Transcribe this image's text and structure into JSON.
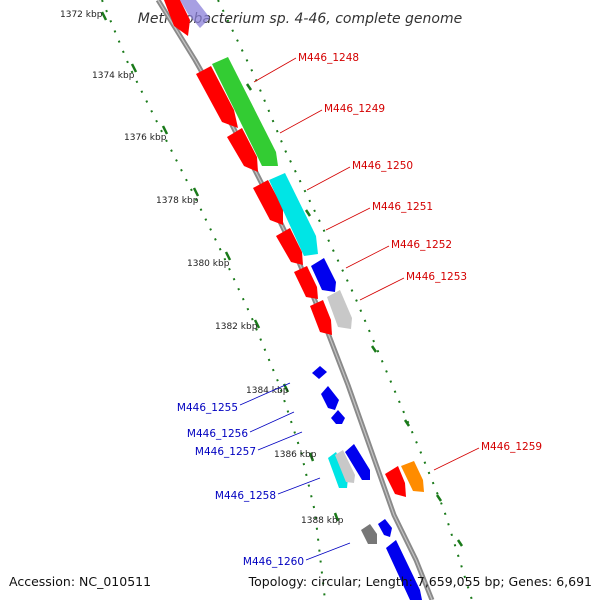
{
  "title": "Methylobacterium sp. 4-46, complete genome",
  "footer": {
    "accession": "Accession: NC_010511",
    "summary": "Topology: circular; Length: 7,659,055 bp; Genes: 6,691"
  },
  "colors": {
    "backbone": "#8a8a8a",
    "ticks": "#1a7a1a",
    "red": "#ff0000",
    "green": "#33cc33",
    "cyan": "#00e5e5",
    "blue": "#0000ee",
    "light_gray": "#c8c8c8",
    "gray": "#777777",
    "orange": "#ff8c00",
    "lavender": "#8a7fd8",
    "label_forward": "#d40000",
    "label_reverse": "#0000c0"
  },
  "kbp_labels": [
    "1372 kbp",
    "1374 kbp",
    "1376 kbp",
    "1378 kbp",
    "1380 kbp",
    "1382 kbp",
    "1384 kbp",
    "1386 kbp",
    "1388 kbp"
  ],
  "forward_labels": [
    "M446_1248",
    "M446_1249",
    "M446_1250",
    "M446_1251",
    "M446_1252",
    "M446_1253",
    "M446_1259"
  ],
  "reverse_labels": [
    "M446_1255",
    "M446_1256",
    "M446_1257",
    "M446_1258",
    "M446_1260"
  ]
}
